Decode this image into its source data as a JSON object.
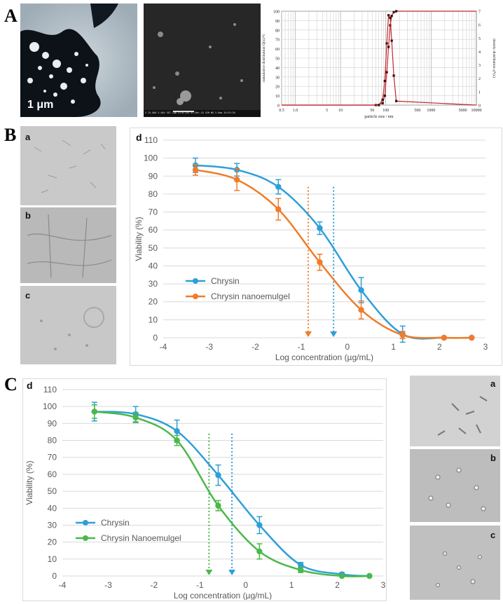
{
  "panels": {
    "A": {
      "letter": "A",
      "tem_scale_label": "1 μm",
      "sem_info": "X 25,000   5.0kV SEI   1μm   LITB-CAS 07-Mar-18  SEM   WD 5.0mm  10:55:30"
    },
    "B": {
      "letter": "B",
      "micro_labels": [
        "a",
        "b",
        "c"
      ],
      "chart_letter": "d"
    },
    "C": {
      "letter": "C",
      "micro_labels": [
        "a",
        "b",
        "c"
      ],
      "chart_letter": "d"
    }
  },
  "colors": {
    "chrysin": "#2E9FD8",
    "nano_orange": "#F07C2A",
    "nano_green": "#4BB84A",
    "psd_red": "#C0272D"
  },
  "chart_data": [
    {
      "type": "line",
      "panel": "A-psd",
      "xlabel": "particle size / nm",
      "ylabel_left": "cumulative distribution Q(x)/%",
      "ylabel_right": "density distribution q*(x)",
      "x_ticks": [
        "0.5",
        "1.0",
        "5",
        "10",
        "50",
        "100",
        "500",
        "1000",
        "5000",
        "10000"
      ],
      "y_left_ticks": [
        "0",
        "10",
        "20",
        "30",
        "40",
        "50",
        "60",
        "70",
        "80",
        "90",
        "100"
      ],
      "y_right_ticks": [
        "0",
        "1",
        "2",
        "3",
        "4",
        "5",
        "6",
        "7"
      ],
      "xscale": "log",
      "xlim": [
        0.5,
        10000
      ],
      "ylim_left": [
        0,
        100
      ],
      "ylim_right": [
        0,
        7
      ],
      "series": [
        {
          "axis": "left",
          "x": [
            0.5,
            60,
            85,
            95,
            105,
            115,
            125,
            135,
            150,
            170,
            10000
          ],
          "y": [
            0,
            0,
            2,
            10,
            35,
            62,
            85,
            95,
            99,
            100,
            100
          ]
        },
        {
          "axis": "right",
          "x": [
            0.5,
            70,
            85,
            95,
            105,
            115,
            125,
            135,
            150,
            170,
            10000
          ],
          "y": [
            0,
            0,
            0.4,
            1.8,
            4.6,
            6.7,
            6.5,
            4.8,
            2.2,
            0.3,
            0
          ]
        }
      ]
    },
    {
      "type": "line",
      "panel": "B-d",
      "xlabel": "Log concentration (µg/mL)",
      "ylabel": "Viability (%)",
      "xlim": [
        -4,
        3
      ],
      "ylim": [
        0,
        110
      ],
      "x_ticks": [
        "-4",
        "-3",
        "-2",
        "-1",
        "0",
        "1",
        "2",
        "3"
      ],
      "y_ticks": [
        "0",
        "10",
        "20",
        "30",
        "40",
        "50",
        "60",
        "70",
        "80",
        "90",
        "100",
        "110"
      ],
      "grid": true,
      "legend": "left-middle",
      "series": [
        {
          "name": "Chrysin",
          "color": "#2E9FD8",
          "x": [
            -3.3,
            -2.4,
            -1.5,
            -0.6,
            0.3,
            1.2,
            2.1,
            2.7
          ],
          "y": [
            96,
            93.5,
            84,
            61,
            26.5,
            2,
            0,
            0
          ],
          "err": [
            4,
            3.5,
            4,
            3.5,
            7,
            4.5,
            0,
            0
          ]
        },
        {
          "name": "Chrysin nanoemulgel",
          "color": "#F07C2A",
          "x": [
            -3.3,
            -2.4,
            -1.5,
            -0.6,
            0.3,
            1.2,
            2.1,
            2.7
          ],
          "y": [
            93.5,
            88,
            71.5,
            42,
            15.5,
            1.5,
            0,
            0
          ],
          "err": [
            3,
            6,
            6,
            4.5,
            5,
            2,
            0,
            0
          ]
        }
      ],
      "markers": [
        {
          "x": -0.85,
          "color": "#F07C2A"
        },
        {
          "x": -0.3,
          "color": "#2E9FD8"
        }
      ]
    },
    {
      "type": "line",
      "panel": "C-d",
      "xlabel": "Log concentration (µg/mL)",
      "ylabel": "Viability (%)",
      "xlim": [
        -4,
        3
      ],
      "ylim": [
        0,
        110
      ],
      "x_ticks": [
        "-4",
        "-3",
        "-2",
        "-1",
        "0",
        "1",
        "2",
        "3"
      ],
      "y_ticks": [
        "0",
        "10",
        "20",
        "30",
        "40",
        "50",
        "60",
        "70",
        "80",
        "90",
        "100",
        "110"
      ],
      "grid": true,
      "legend": "left-bottom",
      "series": [
        {
          "name": "Chrysin",
          "color": "#2E9FD8",
          "x": [
            -3.3,
            -2.4,
            -1.5,
            -0.6,
            0.3,
            1.2,
            2.1,
            2.7
          ],
          "y": [
            97,
            95.5,
            85.5,
            59.5,
            30,
            6.5,
            1,
            0
          ],
          "err": [
            5.5,
            4.5,
            6.5,
            6,
            5,
            1.5,
            1,
            0
          ]
        },
        {
          "name": "Chrysin Nanoemulgel",
          "color": "#4BB84A",
          "x": [
            -3.3,
            -2.4,
            -1.5,
            -0.6,
            0.3,
            1.2,
            2.1,
            2.7
          ],
          "y": [
            97,
            93.5,
            80,
            41.5,
            14.5,
            3.5,
            0,
            0
          ],
          "err": [
            4,
            3,
            3,
            3,
            4.5,
            1.5,
            0,
            0
          ]
        }
      ],
      "markers": [
        {
          "x": -0.8,
          "color": "#4BB84A"
        },
        {
          "x": -0.3,
          "color": "#2E9FD8"
        }
      ]
    }
  ]
}
